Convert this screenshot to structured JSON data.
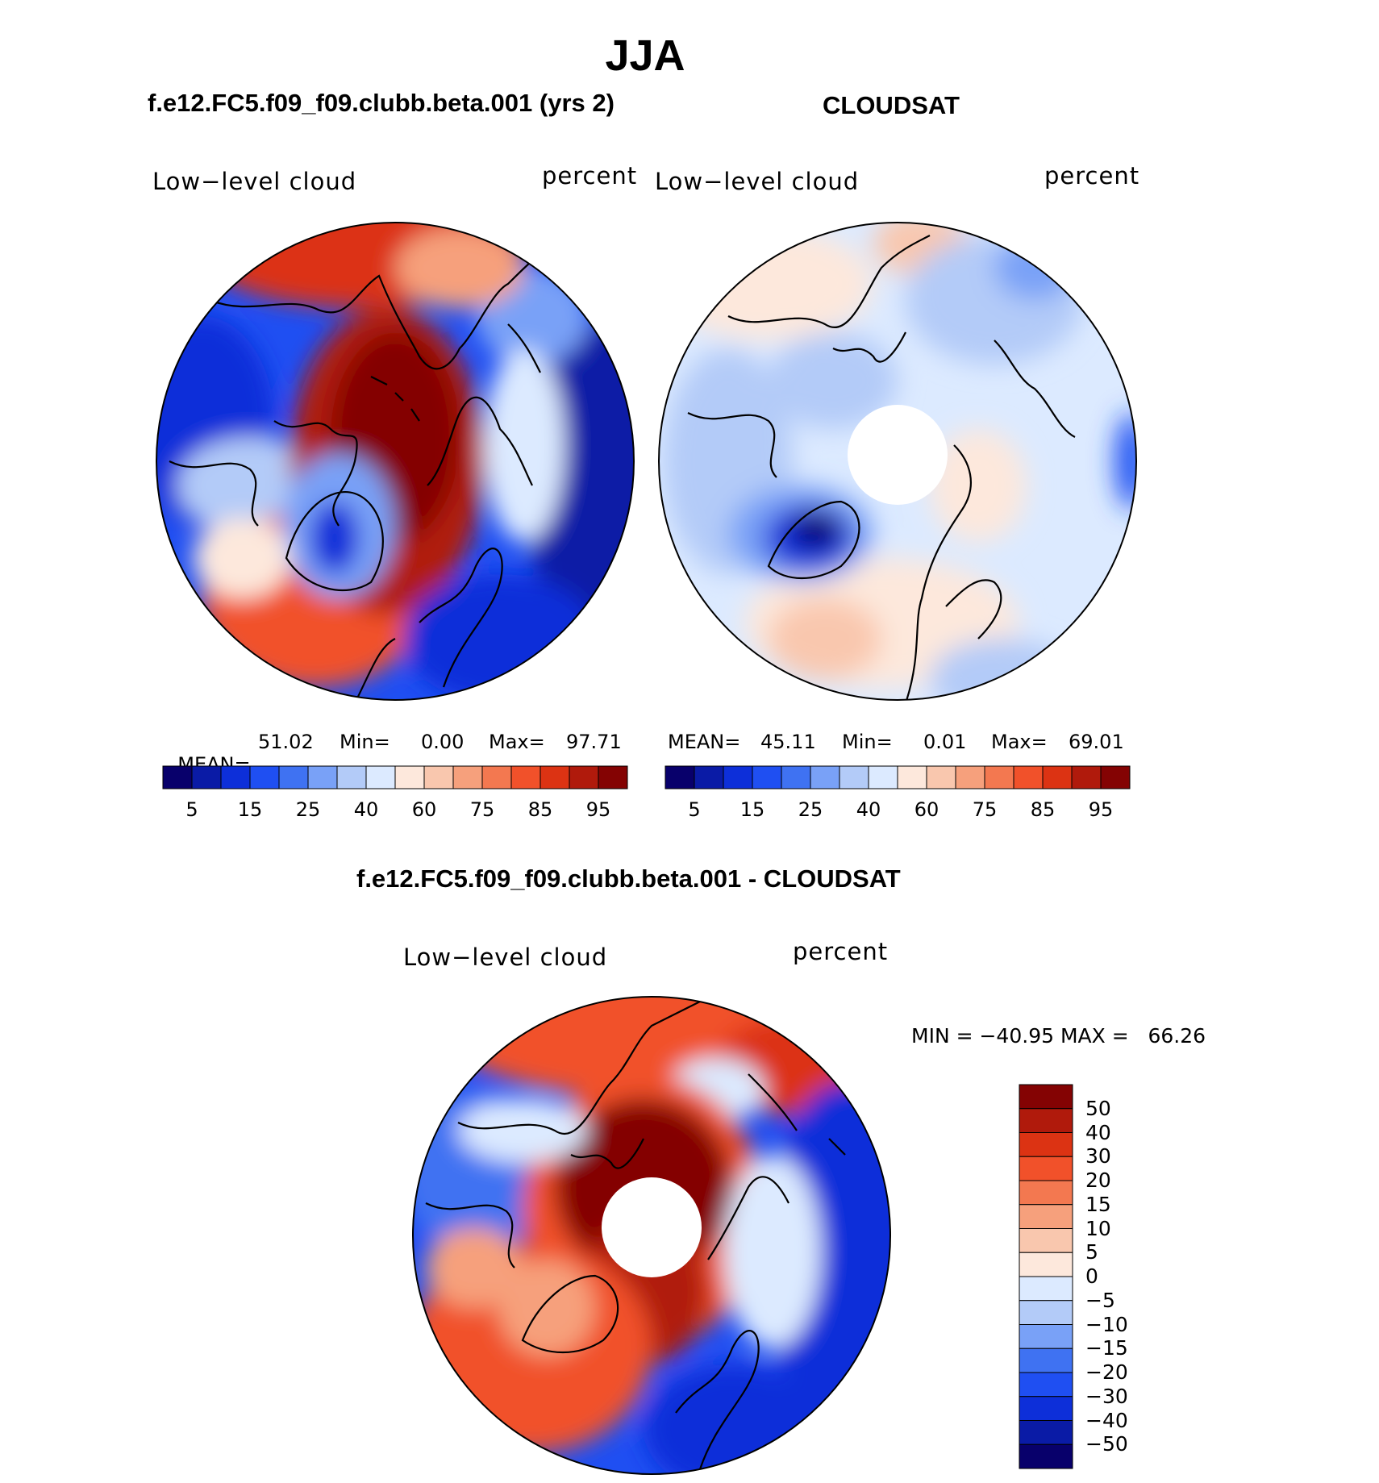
{
  "title": "JJA",
  "panels": {
    "model": {
      "title": "f.e12.FC5.f09_f09.clubb.beta.001 (yrs 2)",
      "var_label": "Low−level cloud",
      "units": "percent",
      "mean_label": "MEAN=",
      "mean": "51.02",
      "min_label": "Min=",
      "min": "0.00",
      "max_label": "Max=",
      "max": "97.71"
    },
    "obs": {
      "title": "CLOUDSAT",
      "var_label": "Low−level cloud",
      "units": "percent",
      "mean_label": "MEAN=",
      "mean": "45.11",
      "min_label": "Min=",
      "min": "0.01",
      "max_label": "Max=",
      "max": "69.01"
    },
    "diff": {
      "title": "f.e12.FC5.f09_f09.clubb.beta.001 - CLOUDSAT",
      "var_label": "Low−level cloud",
      "units": "percent",
      "minmax": "MIN = −40.95 MAX =   66.26"
    }
  },
  "colorbar_main": {
    "ticks": [
      "5",
      "15",
      "25",
      "40",
      "60",
      "75",
      "85",
      "95"
    ],
    "colors": [
      "#08006b",
      "#0a1ba6",
      "#0d2fd9",
      "#1f4ff2",
      "#3f72f2",
      "#79a1f7",
      "#b3cbf8",
      "#dceaff",
      "#fde8dc",
      "#f9c7ae",
      "#f6a07c",
      "#f37850",
      "#f1512a",
      "#dc3313",
      "#b01a0c",
      "#840303"
    ]
  },
  "colorbar_diff": {
    "ticks": [
      "50",
      "40",
      "30",
      "20",
      "15",
      "10",
      "5",
      "0",
      "−5",
      "−10",
      "−15",
      "−20",
      "−30",
      "−40",
      "−50"
    ],
    "colors": [
      "#840303",
      "#b01a0c",
      "#dc3313",
      "#f1512a",
      "#f37850",
      "#f6a07c",
      "#f9c7ae",
      "#fde8dc",
      "#dceaff",
      "#b3cbf8",
      "#79a1f7",
      "#3f72f2",
      "#1f4ff2",
      "#0d2fd9",
      "#0a1ba6",
      "#08006b"
    ]
  },
  "colors": {
    "ocean_blue": "#1f4ff2",
    "deep_blue": "#0a1ba6",
    "light_blue": "#b3cbf8",
    "warm_red": "#dc3313",
    "dark_red": "#840303",
    "salmon": "#f6a07c",
    "cream": "#fde8dc"
  }
}
